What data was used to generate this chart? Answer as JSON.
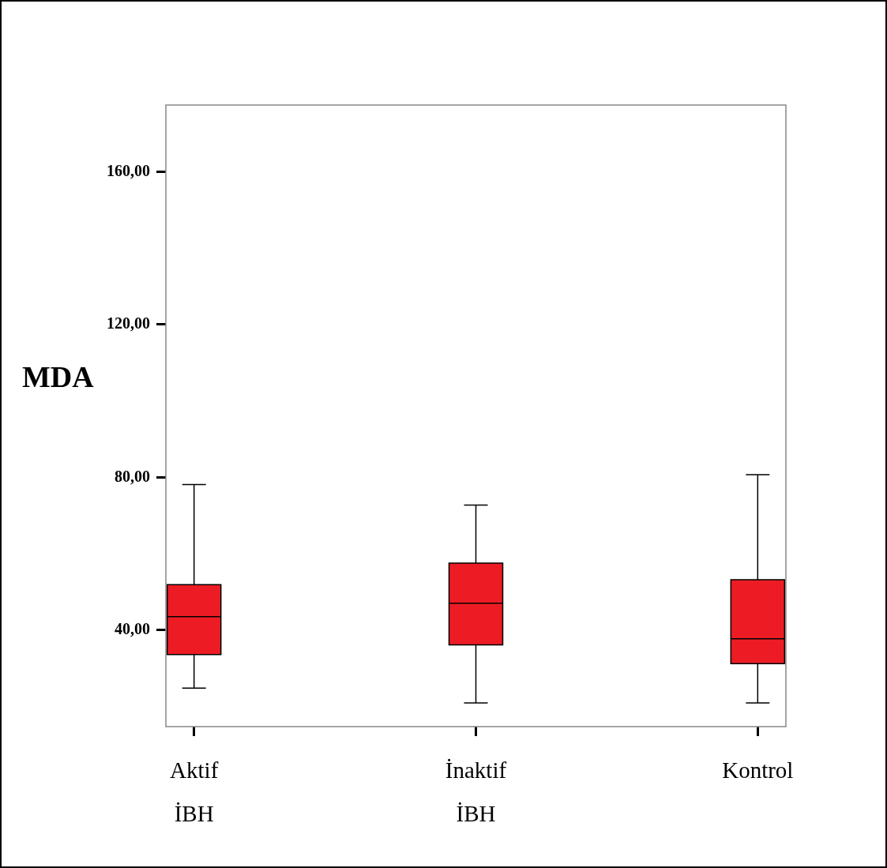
{
  "chart_data": {
    "type": "box",
    "ylabel": "MDA",
    "categories": [
      "Aktif İBH",
      "İnaktif İBH",
      "Kontrol"
    ],
    "color": "#ed1c24",
    "boxes": [
      {
        "low": 24.8,
        "q1": 33.6,
        "median": 43.5,
        "q3": 51.9,
        "high": 78.1
      },
      {
        "low": 20.9,
        "q1": 36.1,
        "median": 47,
        "q3": 57.5,
        "high": 72.7
      },
      {
        "low": 20.9,
        "q1": 31.2,
        "median": 37.7,
        "q3": 53.2,
        "high": 80.7
      }
    ],
    "ylim": [
      14.7,
      177.5
    ],
    "yticks": [
      {
        "value": 40,
        "label": "40,00"
      },
      {
        "value": 80,
        "label": "80,00"
      },
      {
        "value": 120,
        "label": "120,00"
      },
      {
        "value": 160,
        "label": "160,00"
      }
    ]
  }
}
